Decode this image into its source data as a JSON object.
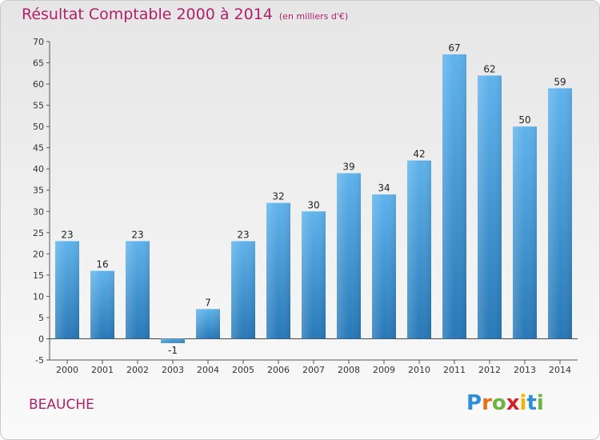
{
  "header": {
    "title": "Résultat Comptable 2000 à 2014",
    "subtitle": "(en milliers d'€)"
  },
  "footer": {
    "city": "BEAUCHE",
    "logo_letters": [
      "P",
      "r",
      "o",
      "x",
      "i",
      "t",
      "i"
    ],
    "logo_colors": [
      "#2e8fd6",
      "#e86f1c",
      "#6db33f",
      "#d1222a",
      "#f0b400",
      "#2e8fd6",
      "#6db33f"
    ]
  },
  "chart_data": {
    "type": "bar",
    "categories": [
      "2000",
      "2001",
      "2002",
      "2003",
      "2004",
      "2005",
      "2006",
      "2007",
      "2008",
      "2009",
      "2010",
      "2011",
      "2012",
      "2013",
      "2014"
    ],
    "values": [
      23,
      16,
      23,
      -1,
      7,
      23,
      32,
      30,
      39,
      34,
      42,
      67,
      62,
      50,
      59
    ],
    "title": "Résultat Comptable 2000 à 2014",
    "subtitle": "(en milliers d'€)",
    "ylim": [
      -5,
      70
    ],
    "yticks": [
      -5,
      0,
      5,
      10,
      15,
      20,
      25,
      30,
      35,
      40,
      45,
      50,
      55,
      60,
      65,
      70
    ],
    "grid": false,
    "bar_color": "#3b95db"
  }
}
